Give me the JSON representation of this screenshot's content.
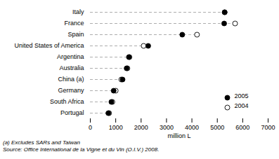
{
  "chart_data": {
    "type": "dot",
    "orientation": "horizontal",
    "categories": [
      "Italy",
      "France",
      "Spain",
      "United States of America",
      "Argentina",
      "Australia",
      "China (a)",
      "Germany",
      "South Africa",
      "Portugal"
    ],
    "series": [
      {
        "name": "2005",
        "color": "#000000",
        "marker": "circle",
        "values": [
          5290,
          5270,
          3620,
          2280,
          1520,
          1430,
          1270,
          920,
          830,
          710
        ]
      },
      {
        "name": "2004",
        "color": "#000000",
        "marker": "circle_open",
        "values": [
          5290,
          5700,
          4200,
          2100,
          1540,
          1460,
          1220,
          1000,
          870,
          740
        ]
      }
    ],
    "xlabel": "million L",
    "xlim": [
      0,
      7000
    ],
    "xticks": [
      0,
      1000,
      2000,
      3000,
      4000,
      5000,
      6000,
      7000
    ],
    "line_style": "dashed",
    "color": "#aaaaaa",
    "grid": false,
    "legend": "lower right",
    "note": "(a) Excludes SARs and Taiwan",
    "source": "Source: Office International de la Vigne et du Vin (O.I.V.) 2008."
  }
}
